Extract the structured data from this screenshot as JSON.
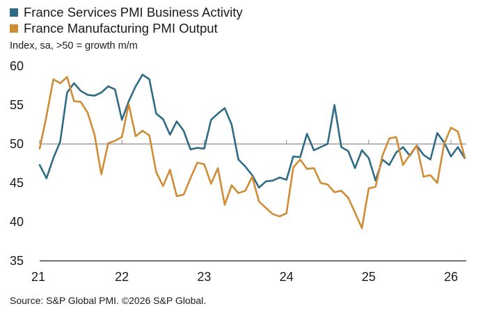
{
  "legend": {
    "series1_label": "France Services PMI Business Activity",
    "series2_label": "France Manufacturing PMI Output"
  },
  "subtitle": "Index, sa, >50 = growth m/m",
  "source": "Source: S&P Global PMI. ©2026 S&P Global.",
  "colors": {
    "services": "#2f6b85",
    "manufacturing": "#d08b35",
    "reference_line": "#8c8c8c"
  },
  "chart_data": {
    "type": "line",
    "x_start": "2021-01",
    "x_end": "2026-02",
    "x_ticks": [
      "21",
      "22",
      "23",
      "24",
      "25",
      "26"
    ],
    "y_ticks": [
      "60",
      "55",
      "50",
      "45",
      "40",
      "35"
    ],
    "ylim": [
      35,
      60
    ],
    "reference_line": 50,
    "grid": false,
    "legend_position": "top-left",
    "series": [
      {
        "name": "France Services PMI Business Activity",
        "values": [
          47.3,
          45.6,
          48.2,
          50.3,
          56.6,
          57.8,
          56.8,
          56.3,
          56.2,
          56.6,
          57.4,
          57.0,
          53.1,
          55.5,
          57.4,
          58.9,
          58.3,
          53.9,
          53.2,
          51.2,
          52.9,
          51.7,
          49.3,
          49.5,
          49.4,
          53.1,
          53.9,
          54.6,
          52.5,
          48.0,
          47.1,
          46.0,
          44.4,
          45.2,
          45.3,
          45.7,
          45.4,
          48.4,
          48.3,
          51.3,
          49.2,
          49.6,
          50.0,
          55.0,
          49.6,
          49.1,
          46.9,
          49.2,
          48.2,
          45.3,
          48.0,
          47.3,
          48.9,
          49.6,
          48.5,
          49.8,
          48.6,
          48.0,
          51.4,
          50.2,
          48.4,
          49.6,
          48.2
        ],
        "color": "#2f6b85"
      },
      {
        "name": "France Manufacturing PMI Output",
        "values": [
          49.4,
          53.6,
          58.3,
          57.8,
          58.6,
          55.5,
          55.4,
          54.0,
          51.2,
          46.1,
          50.1,
          50.4,
          50.9,
          55.1,
          51.0,
          51.7,
          51.1,
          46.4,
          44.6,
          46.7,
          43.3,
          43.5,
          45.6,
          47.6,
          47.4,
          44.9,
          46.9,
          42.2,
          44.7,
          43.7,
          44.0,
          45.8,
          42.6,
          41.8,
          41.0,
          40.7,
          41.1,
          47.0,
          48.0,
          46.8,
          46.9,
          45.0,
          44.8,
          43.8,
          44.0,
          43.1,
          41.2,
          39.2,
          44.3,
          44.5,
          48.5,
          50.7,
          50.9,
          47.3,
          48.6,
          49.8,
          45.8,
          46.0,
          45.0,
          50.0,
          52.1,
          51.6,
          48.3
        ],
        "color": "#d08b35"
      }
    ]
  }
}
